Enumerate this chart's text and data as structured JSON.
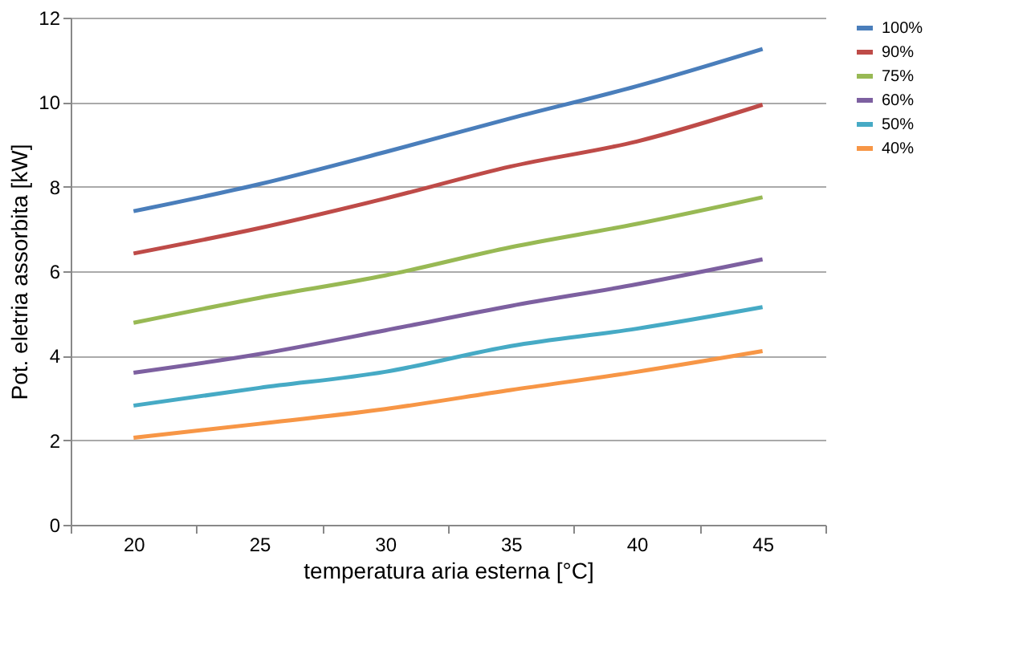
{
  "chart_data": {
    "type": "line",
    "xlabel": "temperatura aria esterna [°C]",
    "ylabel": "Pot. eletria assorbita [kW]",
    "categories": [
      "20",
      "25",
      "30",
      "35",
      "40",
      "45"
    ],
    "series": [
      {
        "name": "100%",
        "color": "#4a7ebb",
        "values": [
          7.42,
          8.06,
          8.82,
          9.62,
          10.38,
          11.26
        ]
      },
      {
        "name": "90%",
        "color": "#be4b48",
        "values": [
          6.42,
          7.02,
          7.72,
          8.48,
          9.07,
          9.94
        ]
      },
      {
        "name": "75%",
        "color": "#98b954",
        "values": [
          4.78,
          5.37,
          5.9,
          6.57,
          7.12,
          7.75
        ]
      },
      {
        "name": "60%",
        "color": "#7d60a0",
        "values": [
          3.6,
          4.04,
          4.6,
          5.18,
          5.69,
          6.28
        ]
      },
      {
        "name": "50%",
        "color": "#46aac5",
        "values": [
          2.82,
          3.24,
          3.62,
          4.23,
          4.64,
          5.15
        ]
      },
      {
        "name": "40%",
        "color": "#f79646",
        "values": [
          2.06,
          2.39,
          2.74,
          3.19,
          3.62,
          4.11
        ]
      }
    ],
    "ylim": [
      0,
      12
    ],
    "yticks": [
      0,
      2,
      4,
      6,
      8,
      10,
      12
    ],
    "grid": "y",
    "legend": "right",
    "line_style": "solid",
    "marker": "none"
  }
}
